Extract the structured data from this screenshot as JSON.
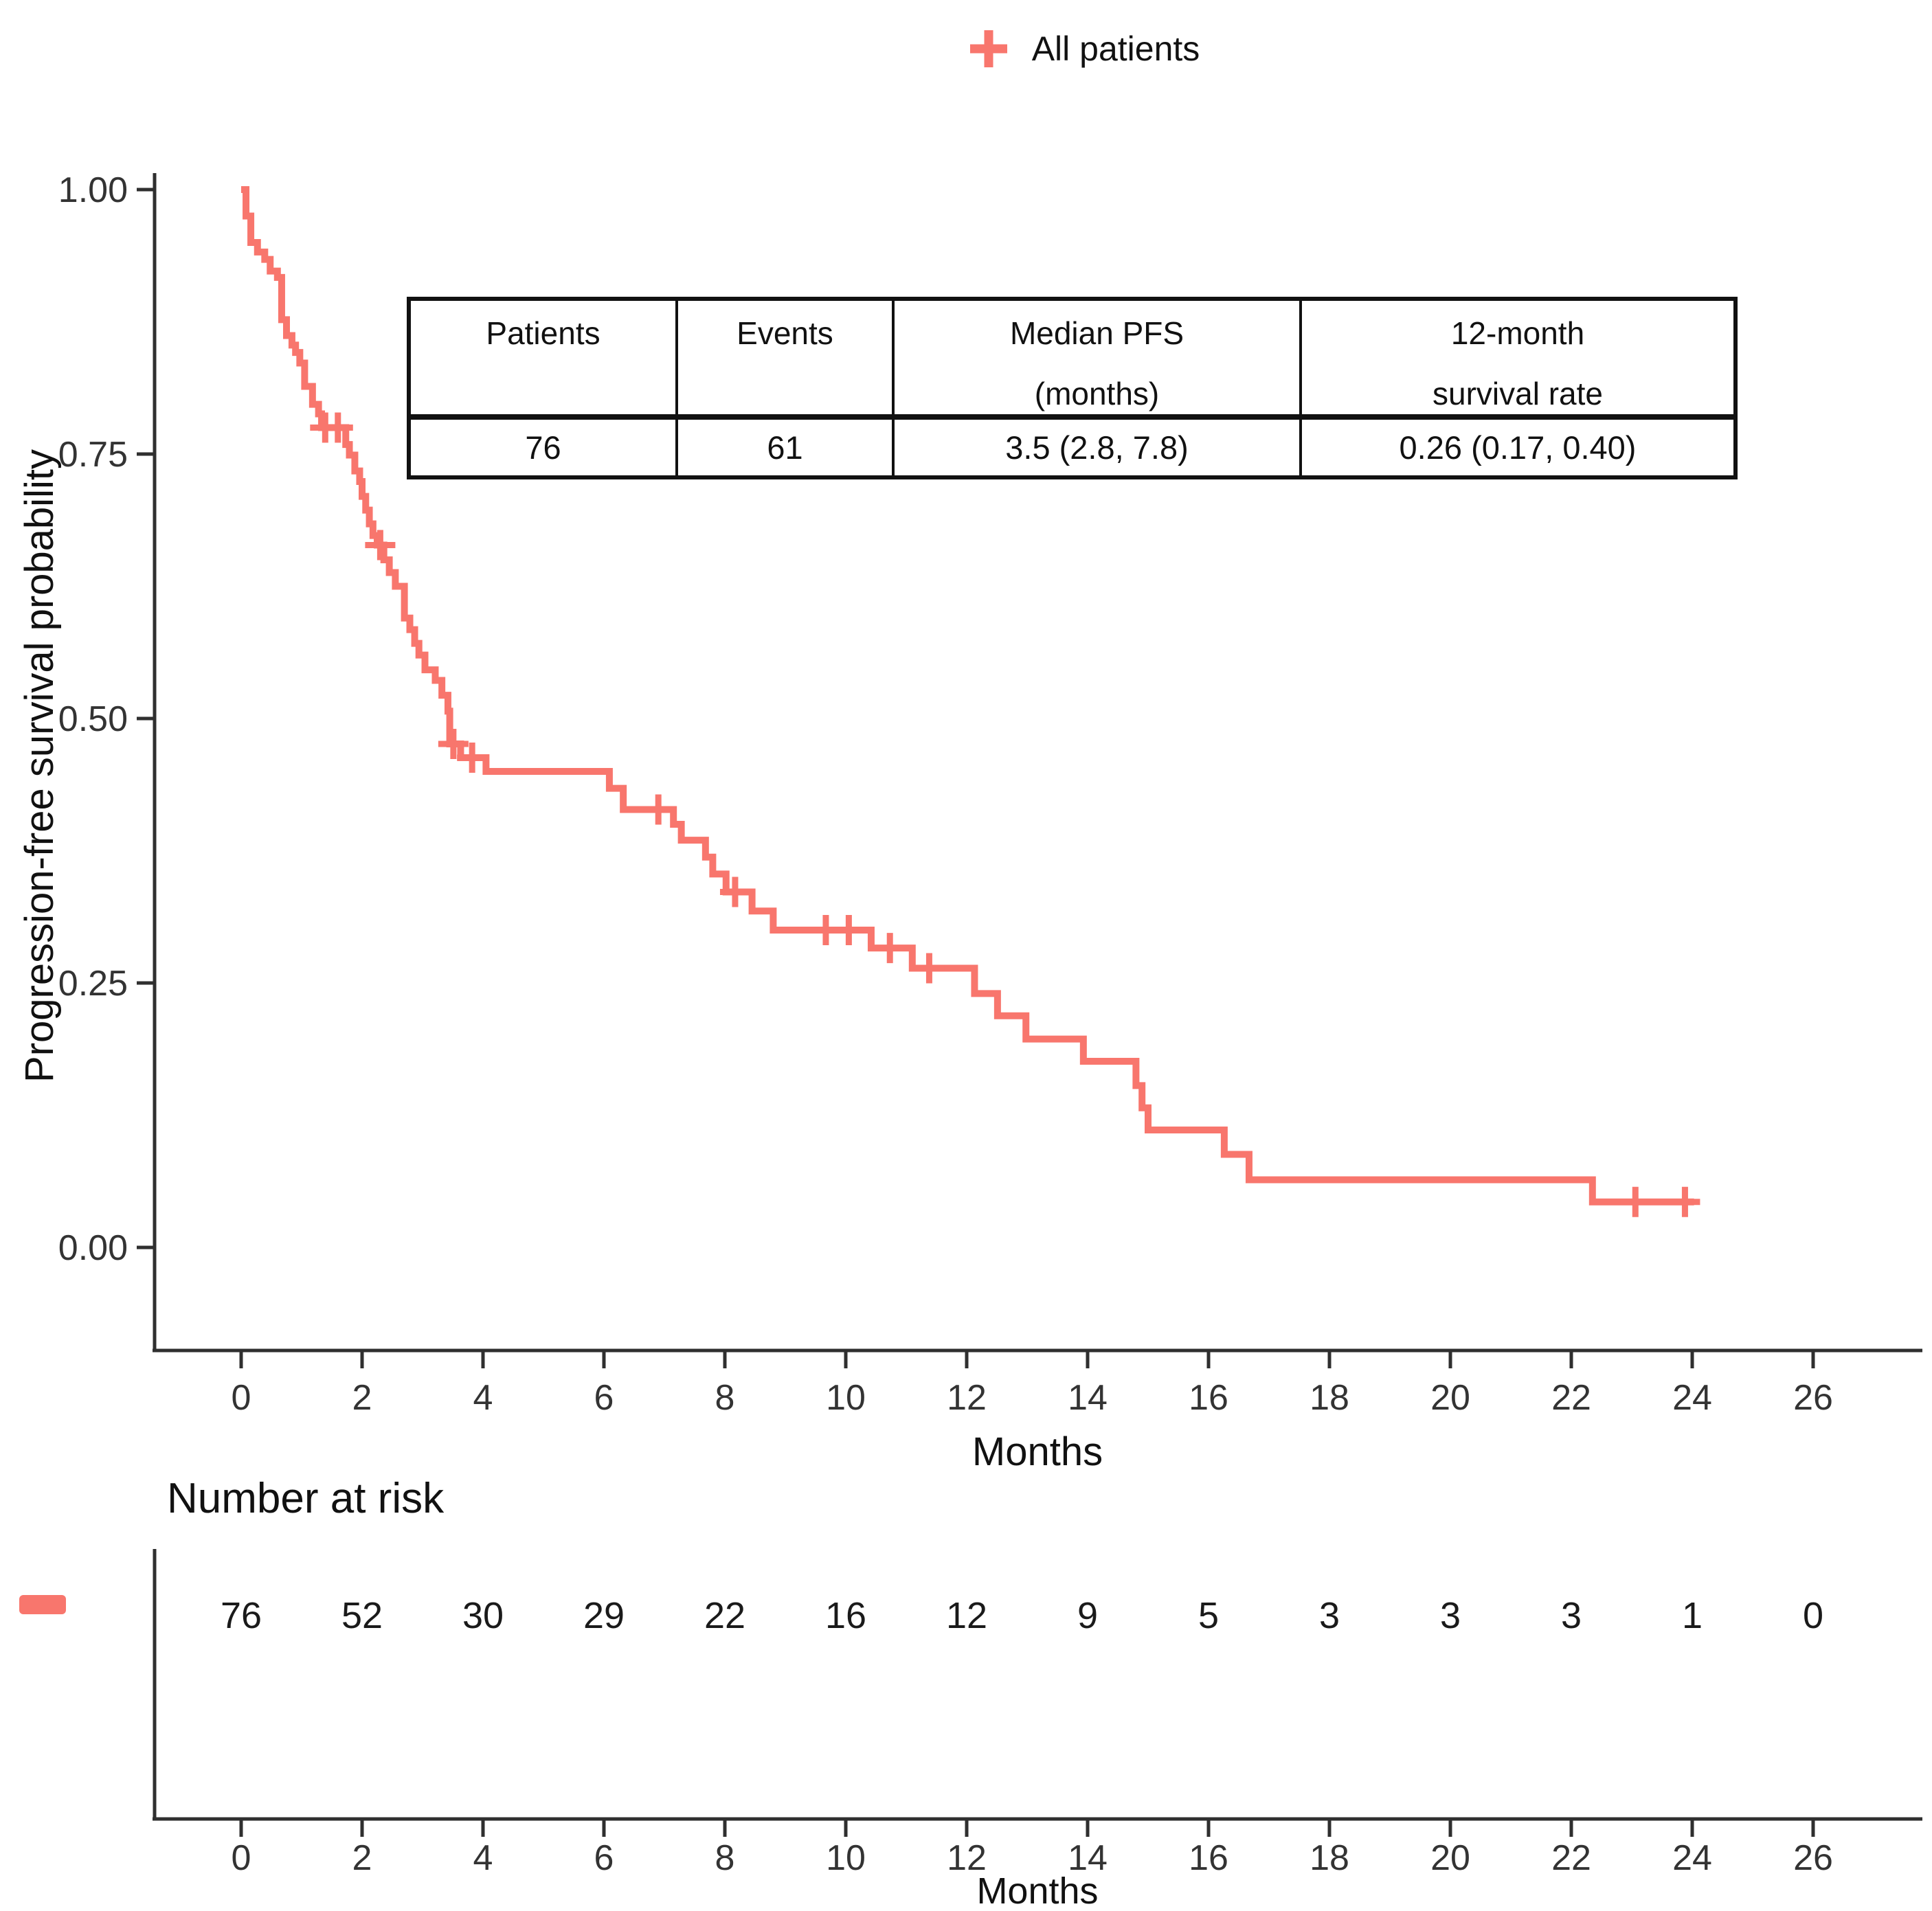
{
  "figure": {
    "background": "#ffffff"
  },
  "legend": {
    "label": "All patients",
    "marker_icon": "plus-censor-icon",
    "color": "#F8766D"
  },
  "summary_table": {
    "columns": [
      {
        "header_lines": [
          "Patients"
        ],
        "value": "76"
      },
      {
        "header_lines": [
          "Events"
        ],
        "value": "61"
      },
      {
        "header_lines": [
          "Median PFS",
          "(months)"
        ],
        "value": "3.5 (2.8, 7.8)"
      },
      {
        "header_lines": [
          "12-month",
          "survival rate"
        ],
        "value": "0.26 (0.17, 0.40)"
      }
    ]
  },
  "chart_data": {
    "type": "line",
    "subtype": "kaplan_meier_step_curve",
    "title": "",
    "xlabel": "Months",
    "ylabel": "Progression-free survival probability",
    "xlim": [
      -0.6,
      27.6
    ],
    "ylim": [
      -0.02,
      1.03
    ],
    "xticks": [
      0,
      2,
      4,
      6,
      8,
      10,
      12,
      14,
      16,
      18,
      20,
      22,
      24,
      26
    ],
    "yticks": [
      {
        "v": 0.0,
        "label": "0.00"
      },
      {
        "v": 0.25,
        "label": "0.25"
      },
      {
        "v": 0.5,
        "label": "0.50"
      },
      {
        "v": 0.75,
        "label": "0.75"
      },
      {
        "v": 1.0,
        "label": "1.00"
      }
    ],
    "grid": false,
    "legend_position": "top-center",
    "series": [
      {
        "name": "All patients",
        "color": "#F8766D",
        "steps": [
          [
            0,
            1.0
          ],
          [
            0.08,
            0.975
          ],
          [
            0.16,
            0.95
          ],
          [
            0.27,
            0.941
          ],
          [
            0.39,
            0.934
          ],
          [
            0.48,
            0.923
          ],
          [
            0.6,
            0.917
          ],
          [
            0.67,
            0.877
          ],
          [
            0.75,
            0.862
          ],
          [
            0.84,
            0.853
          ],
          [
            0.9,
            0.846
          ],
          [
            0.97,
            0.836
          ],
          [
            1.05,
            0.814
          ],
          [
            1.18,
            0.797
          ],
          [
            1.28,
            0.788
          ],
          [
            1.33,
            0.775
          ],
          [
            1.73,
            0.759
          ],
          [
            1.79,
            0.749
          ],
          [
            1.88,
            0.734
          ],
          [
            1.96,
            0.724
          ],
          [
            2.0,
            0.71
          ],
          [
            2.06,
            0.697
          ],
          [
            2.12,
            0.684
          ],
          [
            2.18,
            0.673
          ],
          [
            2.25,
            0.664
          ],
          [
            2.36,
            0.65
          ],
          [
            2.45,
            0.638
          ],
          [
            2.55,
            0.625
          ],
          [
            2.7,
            0.595
          ],
          [
            2.79,
            0.584
          ],
          [
            2.87,
            0.571
          ],
          [
            2.94,
            0.56
          ],
          [
            3.04,
            0.546
          ],
          [
            3.21,
            0.536
          ],
          [
            3.32,
            0.522
          ],
          [
            3.42,
            0.507
          ],
          [
            3.45,
            0.476
          ],
          [
            3.63,
            0.463
          ],
          [
            4.05,
            0.45
          ],
          [
            6.09,
            0.434
          ],
          [
            6.32,
            0.414
          ],
          [
            7.15,
            0.4
          ],
          [
            7.28,
            0.385
          ],
          [
            7.68,
            0.369
          ],
          [
            7.8,
            0.353
          ],
          [
            8.02,
            0.336
          ],
          [
            8.45,
            0.318
          ],
          [
            8.8,
            0.3
          ],
          [
            10.42,
            0.283
          ],
          [
            11.1,
            0.264
          ],
          [
            12.13,
            0.24
          ],
          [
            12.51,
            0.219
          ],
          [
            12.98,
            0.197
          ],
          [
            13.93,
            0.176
          ],
          [
            14.8,
            0.153
          ],
          [
            14.9,
            0.132
          ],
          [
            15.0,
            0.111
          ],
          [
            16.26,
            0.088
          ],
          [
            16.67,
            0.064
          ],
          [
            22.35,
            0.043
          ]
        ],
        "censor_marks": [
          [
            1.39,
            0.775
          ],
          [
            1.6,
            0.775
          ],
          [
            2.3,
            0.664
          ],
          [
            3.51,
            0.476
          ],
          [
            3.82,
            0.463
          ],
          [
            6.9,
            0.414
          ],
          [
            8.17,
            0.336
          ],
          [
            9.67,
            0.3
          ],
          [
            10.05,
            0.3
          ],
          [
            10.73,
            0.283
          ],
          [
            11.38,
            0.264
          ],
          [
            23.06,
            0.043
          ],
          [
            23.88,
            0.043
          ]
        ],
        "end_time": 24.03
      }
    ],
    "number_at_risk": {
      "title": "Number at risk",
      "xlabel": "Months",
      "times": [
        0,
        2,
        4,
        6,
        8,
        10,
        12,
        14,
        16,
        18,
        20,
        22,
        24,
        26
      ],
      "counts": [
        76,
        52,
        30,
        29,
        22,
        16,
        12,
        9,
        5,
        3,
        3,
        3,
        1,
        0
      ],
      "marker_color": "#F8766D"
    }
  }
}
